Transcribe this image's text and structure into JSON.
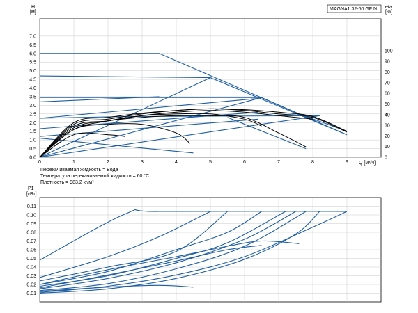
{
  "title": "MAGNA1 32-60 GF N",
  "notes": [
    "Перекачиваемая жидкость = Вода",
    "Температура перекачиваемой жидкости = 60 °C",
    "Плотность = 983.2 кг/м³"
  ],
  "colors": {
    "blue": "#1f5fa0",
    "black": "#000000",
    "grid": "#c8c8c8"
  },
  "chart_data": [
    {
      "type": "line",
      "ylabel_line1": "H",
      "ylabel_line2": "[м]",
      "ylabel_right_line1": "eta",
      "ylabel_right_line2": "[%]",
      "xlabel": "Q [м³/ч]",
      "xlim": [
        0,
        10
      ],
      "ylim": [
        0,
        8
      ],
      "y2lim": [
        0,
        130
      ],
      "x_ticks": [
        "0",
        "1",
        "2",
        "3",
        "4",
        "5",
        "6",
        "7",
        "8",
        "9"
      ],
      "y_ticks": [
        "0.0",
        "0.5",
        "1.0",
        "1.5",
        "2.0",
        "2.5",
        "3.0",
        "3.5",
        "4.0",
        "4.5",
        "5.0",
        "5.5",
        "6.0",
        "6.5",
        "7.0"
      ],
      "y2_ticks": [
        "0",
        "10",
        "20",
        "30",
        "40",
        "50",
        "60",
        "70",
        "80",
        "90",
        "100"
      ],
      "grid": true,
      "series": [
        {
          "color": "blue",
          "points": [
            [
              0,
              6.0
            ],
            [
              3.5,
              6.0
            ],
            [
              7.6,
              2.5
            ],
            [
              9.0,
              1.5
            ]
          ]
        },
        {
          "color": "blue",
          "points": [
            [
              0,
              4.7
            ],
            [
              5.0,
              4.6
            ],
            [
              9.0,
              1.3
            ]
          ]
        },
        {
          "color": "blue",
          "points": [
            [
              0,
              3.45
            ],
            [
              6.5,
              3.45
            ],
            [
              9.0,
              1.3
            ]
          ]
        },
        {
          "color": "blue",
          "points": [
            [
              0,
              2.25
            ],
            [
              2.5,
              2.35
            ],
            [
              8.2,
              2.4
            ]
          ]
        },
        {
          "color": "blue",
          "points": [
            [
              0,
              0.0
            ],
            [
              5.0,
              4.6
            ]
          ]
        },
        {
          "color": "blue",
          "points": [
            [
              0,
              0.0
            ],
            [
              6.5,
              3.45
            ]
          ]
        },
        {
          "color": "blue",
          "points": [
            [
              0,
              0.0
            ],
            [
              8.2,
              2.4
            ]
          ]
        },
        {
          "color": "blue",
          "points": [
            [
              0,
              2.25
            ],
            [
              6.4,
              3.4
            ]
          ]
        },
        {
          "color": "blue",
          "points": [
            [
              0,
              1.65
            ],
            [
              6.4,
              2.6
            ]
          ]
        },
        {
          "color": "blue",
          "points": [
            [
              0,
              1.2
            ],
            [
              6.4,
              2.2
            ]
          ]
        },
        {
          "color": "blue",
          "points": [
            [
              0,
              3.2
            ],
            [
              3.5,
              3.5
            ]
          ]
        },
        {
          "color": "blue",
          "points": [
            [
              0,
              1.1
            ],
            [
              4.5,
              0.25
            ]
          ]
        },
        {
          "color": "blue",
          "points": [
            [
              5.5,
              2.3
            ],
            [
              7.8,
              0.5
            ]
          ]
        },
        {
          "color": "black",
          "points": [
            [
              0,
              0
            ],
            [
              1,
              2.0
            ],
            [
              2,
              2.3
            ],
            [
              3,
              2.55
            ],
            [
              4,
              2.7
            ],
            [
              5,
              2.8
            ],
            [
              6,
              2.75
            ],
            [
              7,
              2.6
            ],
            [
              8,
              2.35
            ],
            [
              9,
              1.5
            ]
          ]
        },
        {
          "color": "black",
          "points": [
            [
              0,
              0
            ],
            [
              1,
              1.9
            ],
            [
              2,
              2.2
            ],
            [
              3,
              2.5
            ],
            [
              4,
              2.7
            ],
            [
              5,
              2.8
            ],
            [
              6,
              2.7
            ],
            [
              7,
              2.5
            ],
            [
              8,
              2.3
            ],
            [
              9,
              1.45
            ]
          ]
        },
        {
          "color": "black",
          "points": [
            [
              0,
              0
            ],
            [
              1,
              1.8
            ],
            [
              2,
              2.1
            ],
            [
              3,
              2.4
            ],
            [
              4,
              2.6
            ],
            [
              5,
              2.7
            ],
            [
              6,
              2.6
            ],
            [
              7,
              2.4
            ],
            [
              8,
              2.2
            ]
          ]
        },
        {
          "color": "black",
          "points": [
            [
              0,
              0
            ],
            [
              1,
              1.7
            ],
            [
              2,
              2.1
            ],
            [
              3,
              2.3
            ],
            [
              4,
              2.4
            ],
            [
              5,
              2.4
            ],
            [
              6,
              2.3
            ],
            [
              7,
              1.4
            ],
            [
              7.8,
              0.6
            ]
          ]
        },
        {
          "color": "black",
          "points": [
            [
              0,
              0
            ],
            [
              1,
              1.6
            ],
            [
              2,
              1.9
            ],
            [
              3,
              1.9
            ],
            [
              4,
              1.4
            ],
            [
              4.4,
              0.8
            ]
          ]
        },
        {
          "color": "black",
          "points": [
            [
              0,
              0
            ],
            [
              1,
              1.3
            ],
            [
              2,
              1.3
            ],
            [
              2.5,
              1.2
            ]
          ]
        },
        {
          "color": "black",
          "points": [
            [
              0,
              0
            ],
            [
              1,
              1.6
            ],
            [
              2,
              2.1
            ],
            [
              3,
              2.4
            ],
            [
              4,
              2.5
            ],
            [
              5,
              2.5
            ],
            [
              6,
              2.2
            ],
            [
              6.5,
              1.8
            ]
          ]
        }
      ]
    },
    {
      "type": "line",
      "ylabel_line1": "P1",
      "ylabel_line2": "[кВт]",
      "xlim": [
        0,
        10
      ],
      "ylim": [
        0,
        0.12
      ],
      "y_ticks": [
        "0.01",
        "0.02",
        "0.03",
        "0.04",
        "0.05",
        "0.06",
        "0.07",
        "0.08",
        "0.09",
        "0.10",
        "0.11"
      ],
      "grid": true,
      "series": [
        {
          "color": "blue",
          "points": [
            [
              0,
              0.048
            ],
            [
              2.5,
              0.101
            ],
            [
              3.5,
              0.104
            ],
            [
              9.0,
              0.104
            ]
          ]
        },
        {
          "color": "blue",
          "points": [
            [
              0,
              0.028
            ],
            [
              2,
              0.052
            ],
            [
              3.5,
              0.075
            ],
            [
              5.0,
              0.104
            ]
          ]
        },
        {
          "color": "blue",
          "points": [
            [
              0,
              0.02
            ],
            [
              2,
              0.035
            ],
            [
              4,
              0.06
            ],
            [
              5.5,
              0.08
            ],
            [
              6.5,
              0.104
            ]
          ]
        },
        {
          "color": "blue",
          "points": [
            [
              0,
              0.015
            ],
            [
              2,
              0.027
            ],
            [
              4,
              0.045
            ],
            [
              6,
              0.072
            ],
            [
              7.5,
              0.104
            ]
          ]
        },
        {
          "color": "blue",
          "points": [
            [
              0,
              0.011
            ],
            [
              2,
              0.018
            ],
            [
              4,
              0.031
            ],
            [
              6,
              0.052
            ],
            [
              8,
              0.086
            ],
            [
              9.0,
              0.104
            ]
          ]
        },
        {
          "color": "blue",
          "points": [
            [
              0,
              0.01
            ],
            [
              2,
              0.015
            ],
            [
              4,
              0.027
            ],
            [
              6,
              0.049
            ],
            [
              7.5,
              0.078
            ],
            [
              8.2,
              0.104
            ]
          ]
        },
        {
          "color": "blue",
          "points": [
            [
              0,
              0.013
            ],
            [
              2,
              0.021
            ],
            [
              4,
              0.038
            ],
            [
              6,
              0.064
            ],
            [
              7.8,
              0.104
            ]
          ]
        },
        {
          "color": "blue",
          "points": [
            [
              0,
              0.018
            ],
            [
              2,
              0.03
            ],
            [
              4,
              0.05
            ],
            [
              5.5,
              0.068
            ],
            [
              7.2,
              0.104
            ]
          ]
        },
        {
          "color": "blue",
          "points": [
            [
              0,
              0.024
            ],
            [
              2,
              0.04
            ],
            [
              4,
              0.058
            ],
            [
              5.5,
              0.104
            ]
          ]
        },
        {
          "color": "blue",
          "points": [
            [
              0,
              0.02
            ],
            [
              2,
              0.037
            ],
            [
              4,
              0.052
            ],
            [
              5.5,
              0.064
            ],
            [
              6.5,
              0.07
            ],
            [
              7.6,
              0.067
            ]
          ]
        },
        {
          "color": "blue",
          "points": [
            [
              0,
              0.016
            ],
            [
              2,
              0.031
            ],
            [
              4,
              0.047
            ],
            [
              5.5,
              0.06
            ],
            [
              6.5,
              0.065
            ]
          ]
        },
        {
          "color": "blue",
          "points": [
            [
              0,
              0.012
            ],
            [
              2,
              0.017
            ],
            [
              3.5,
              0.019
            ],
            [
              4.5,
              0.017
            ]
          ]
        }
      ]
    }
  ]
}
